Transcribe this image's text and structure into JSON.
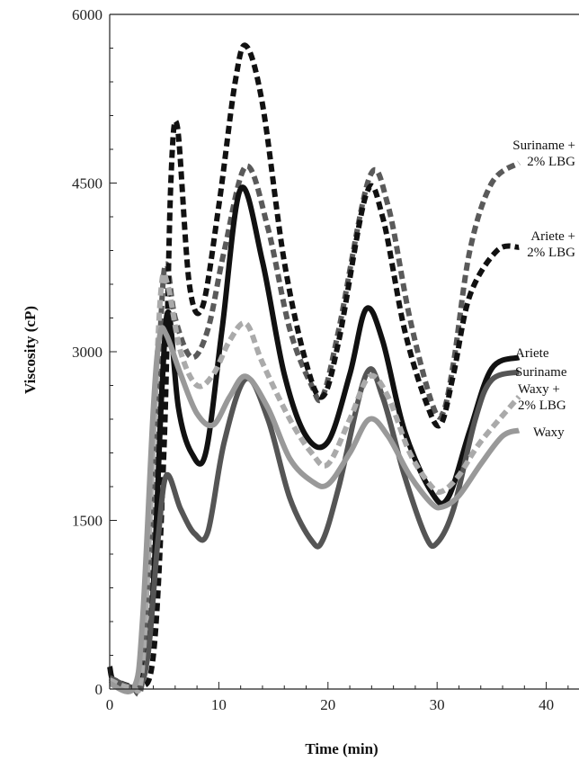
{
  "chart_data": {
    "type": "line",
    "title": "",
    "xlabel": "Time (min)",
    "ylabel": "Viscosity (cP)",
    "xlim": [
      0,
      43
    ],
    "ylim": [
      0,
      6000
    ],
    "xticks": [
      0,
      10,
      20,
      30,
      40
    ],
    "yticks": [
      0,
      1500,
      3000,
      4500,
      6000
    ],
    "grid": false,
    "legend": "inline labels at right end of curves",
    "series": [
      {
        "name": "Suriname + 2% LBG",
        "label_lines": [
          "Suriname +",
          "2% LBG"
        ],
        "color": "#5a5a5a",
        "dash": true,
        "points": [
          [
            0,
            80
          ],
          [
            2,
            20
          ],
          [
            3,
            80
          ],
          [
            4,
            1500
          ],
          [
            4.7,
            3300
          ],
          [
            5.2,
            3780
          ],
          [
            6,
            3300
          ],
          [
            7.5,
            2950
          ],
          [
            9,
            3200
          ],
          [
            10.5,
            3900
          ],
          [
            12.5,
            4650
          ],
          [
            14.5,
            4100
          ],
          [
            16.5,
            3200
          ],
          [
            18.5,
            2700
          ],
          [
            19.5,
            2600
          ],
          [
            21,
            3200
          ],
          [
            23.8,
            4550
          ],
          [
            25.5,
            4300
          ],
          [
            27.5,
            3300
          ],
          [
            29.5,
            2550
          ],
          [
            30.5,
            2450
          ],
          [
            31.5,
            2900
          ],
          [
            33,
            3900
          ],
          [
            35,
            4500
          ],
          [
            37.5,
            4680
          ]
        ]
      },
      {
        "name": "Ariete + 2% LBG",
        "label_lines": [
          "Ariete +",
          "2% LBG"
        ],
        "color": "#111111",
        "dash": true,
        "points": [
          [
            0,
            100
          ],
          [
            2.5,
            30
          ],
          [
            4,
            300
          ],
          [
            5,
            2200
          ],
          [
            5.6,
            4500
          ],
          [
            6.2,
            5000
          ],
          [
            7.3,
            3600
          ],
          [
            8.5,
            3400
          ],
          [
            10,
            4300
          ],
          [
            11.5,
            5400
          ],
          [
            12.5,
            5720
          ],
          [
            14,
            5200
          ],
          [
            16,
            3800
          ],
          [
            18,
            2900
          ],
          [
            19.5,
            2600
          ],
          [
            21,
            3100
          ],
          [
            23.5,
            4400
          ],
          [
            25,
            4200
          ],
          [
            27,
            3200
          ],
          [
            29,
            2550
          ],
          [
            30.3,
            2350
          ],
          [
            31.5,
            2800
          ],
          [
            33,
            3500
          ],
          [
            35.5,
            3900
          ],
          [
            37.5,
            3930
          ]
        ]
      },
      {
        "name": "Ariete",
        "label_lines": [
          "Ariete"
        ],
        "color": "#111111",
        "dash": false,
        "points": [
          [
            0,
            200
          ],
          [
            0.5,
            50
          ],
          [
            2.5,
            30
          ],
          [
            3.8,
            600
          ],
          [
            4.8,
            2700
          ],
          [
            5.4,
            3350
          ],
          [
            6.3,
            2500
          ],
          [
            7.5,
            2100
          ],
          [
            8.8,
            2100
          ],
          [
            10.3,
            3200
          ],
          [
            12,
            4450
          ],
          [
            14,
            3800
          ],
          [
            16,
            2800
          ],
          [
            18,
            2250
          ],
          [
            20,
            2200
          ],
          [
            22,
            2800
          ],
          [
            23.5,
            3380
          ],
          [
            25,
            3100
          ],
          [
            27,
            2300
          ],
          [
            29.5,
            1750
          ],
          [
            31,
            1700
          ],
          [
            33,
            2300
          ],
          [
            35,
            2850
          ],
          [
            37.5,
            2950
          ]
        ]
      },
      {
        "name": "Suriname",
        "label_lines": [
          "Suriname"
        ],
        "color": "#555555",
        "dash": false,
        "points": [
          [
            0,
            100
          ],
          [
            2.5,
            20
          ],
          [
            3.5,
            300
          ],
          [
            4.4,
            1300
          ],
          [
            5.2,
            1900
          ],
          [
            6.5,
            1600
          ],
          [
            7.8,
            1380
          ],
          [
            9,
            1400
          ],
          [
            10.5,
            2200
          ],
          [
            12.5,
            2760
          ],
          [
            14.5,
            2400
          ],
          [
            16.5,
            1700
          ],
          [
            18.5,
            1320
          ],
          [
            19.5,
            1320
          ],
          [
            21,
            1800
          ],
          [
            23.5,
            2800
          ],
          [
            25,
            2600
          ],
          [
            27,
            1900
          ],
          [
            29,
            1350
          ],
          [
            30,
            1300
          ],
          [
            31.5,
            1600
          ],
          [
            33.5,
            2400
          ],
          [
            35,
            2750
          ],
          [
            37.5,
            2820
          ]
        ]
      },
      {
        "name": "Waxy + 2% LBG",
        "label_lines": [
          "Waxy +",
          "2% LBG"
        ],
        "color": "#aaaaaa",
        "dash": true,
        "points": [
          [
            0,
            80
          ],
          [
            2,
            20
          ],
          [
            3,
            200
          ],
          [
            4,
            2200
          ],
          [
            4.7,
            3550
          ],
          [
            5.3,
            3600
          ],
          [
            6.5,
            3000
          ],
          [
            8,
            2700
          ],
          [
            9.5,
            2800
          ],
          [
            11,
            3100
          ],
          [
            12.5,
            3250
          ],
          [
            14,
            2900
          ],
          [
            16.5,
            2400
          ],
          [
            18.5,
            2100
          ],
          [
            20,
            2000
          ],
          [
            22,
            2400
          ],
          [
            23.8,
            2780
          ],
          [
            25.5,
            2600
          ],
          [
            27.5,
            2100
          ],
          [
            29.5,
            1800
          ],
          [
            30.5,
            1760
          ],
          [
            32,
            1900
          ],
          [
            34,
            2200
          ],
          [
            37.5,
            2600
          ]
        ]
      },
      {
        "name": "Waxy",
        "label_lines": [
          "Waxy"
        ],
        "color": "#999999",
        "dash": false,
        "points": [
          [
            0,
            50
          ],
          [
            2.2,
            10
          ],
          [
            3,
            600
          ],
          [
            4,
            2500
          ],
          [
            4.6,
            3150
          ],
          [
            5.2,
            3150
          ],
          [
            6.5,
            2800
          ],
          [
            8,
            2450
          ],
          [
            9.5,
            2350
          ],
          [
            11,
            2600
          ],
          [
            12.5,
            2780
          ],
          [
            14.5,
            2500
          ],
          [
            16.5,
            2050
          ],
          [
            18.5,
            1850
          ],
          [
            20,
            1820
          ],
          [
            22,
            2100
          ],
          [
            23.8,
            2400
          ],
          [
            25.5,
            2250
          ],
          [
            27.5,
            1900
          ],
          [
            29.5,
            1650
          ],
          [
            30.5,
            1620
          ],
          [
            32,
            1720
          ],
          [
            34,
            2000
          ],
          [
            36,
            2250
          ],
          [
            37.5,
            2300
          ]
        ]
      }
    ]
  }
}
